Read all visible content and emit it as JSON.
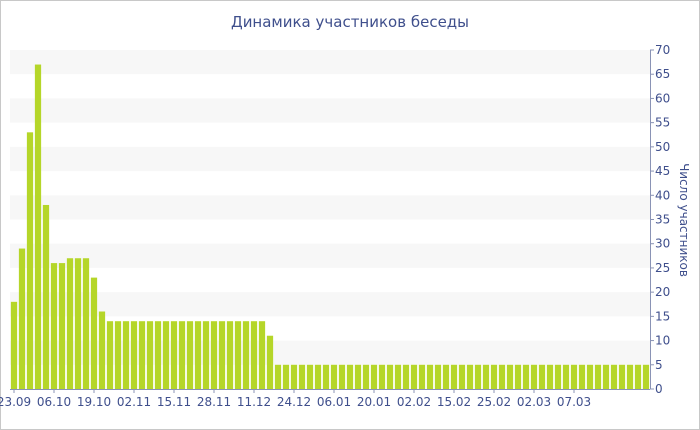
{
  "chart_data": {
    "type": "bar",
    "title": "Динамика участников беседы",
    "ylabel": "Число участников",
    "xlabel": "",
    "ylim": [
      0,
      70
    ],
    "y_ticks": [
      0,
      5,
      10,
      15,
      20,
      25,
      30,
      35,
      40,
      45,
      50,
      55,
      60,
      65,
      70
    ],
    "x_tick_labels": [
      {
        "label": "23.09",
        "index": 0
      },
      {
        "label": "06.10",
        "index": 5
      },
      {
        "label": "19.10",
        "index": 10
      },
      {
        "label": "02.11",
        "index": 15
      },
      {
        "label": "15.11",
        "index": 20
      },
      {
        "label": "28.11",
        "index": 25
      },
      {
        "label": "11.12",
        "index": 30
      },
      {
        "label": "24.12",
        "index": 35
      },
      {
        "label": "06.01",
        "index": 40
      },
      {
        "label": "20.01",
        "index": 45
      },
      {
        "label": "02.02",
        "index": 50
      },
      {
        "label": "15.02",
        "index": 55
      },
      {
        "label": "25.02",
        "index": 60
      },
      {
        "label": "02.03",
        "index": 65
      },
      {
        "label": "07.03",
        "index": 70
      }
    ],
    "bar_color": "#b5d629",
    "grid_band_color": "#f7f7f7",
    "values": [
      18,
      29,
      53,
      67,
      38,
      26,
      26,
      27,
      27,
      27,
      23,
      16,
      14,
      14,
      14,
      14,
      14,
      14,
      14,
      14,
      14,
      14,
      14,
      14,
      14,
      14,
      14,
      14,
      14,
      14,
      14,
      14,
      11,
      5,
      5,
      5,
      5,
      5,
      5,
      5,
      5,
      5,
      5,
      5,
      5,
      5,
      5,
      5,
      5,
      5,
      5,
      5,
      5,
      5,
      5,
      5,
      5,
      5,
      5,
      5,
      5,
      5,
      5,
      5,
      5,
      5,
      5,
      5,
      5,
      5,
      5,
      5,
      5,
      5,
      5,
      5,
      5,
      5,
      5,
      5
    ]
  }
}
